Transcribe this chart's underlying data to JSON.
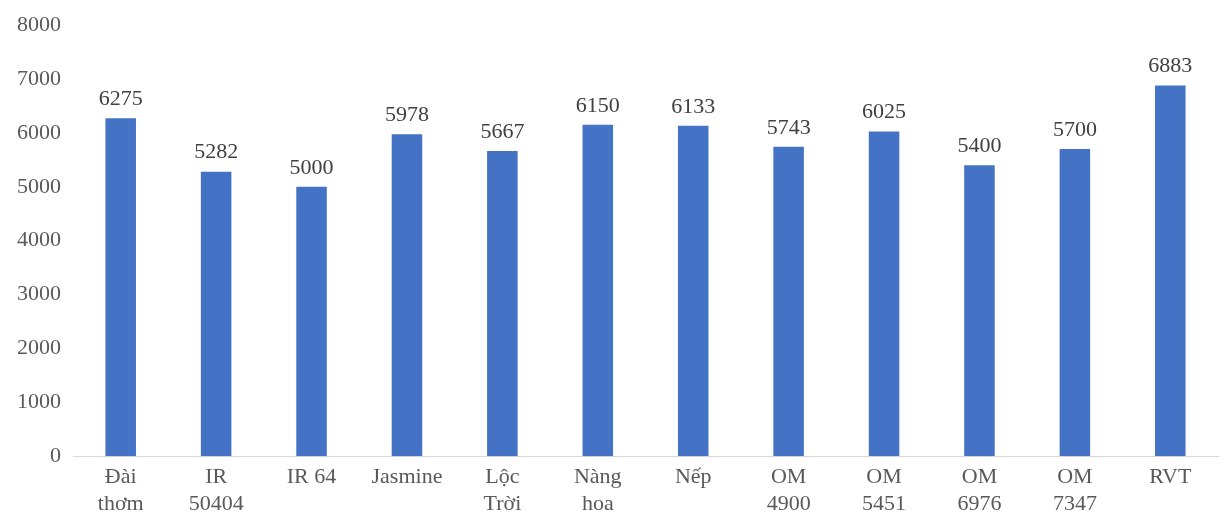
{
  "chart_data": {
    "type": "bar",
    "categories": [
      "Đài\nthơm",
      "IR\n50404",
      "IR 64",
      "Jasmine",
      "Lộc\nTrời",
      "Nàng\nhoa",
      "Nếp",
      "OM\n4900",
      "OM\n5451",
      "OM\n6976",
      "OM\n7347",
      "RVT"
    ],
    "values": [
      6275,
      5282,
      5000,
      5978,
      5667,
      6150,
      6133,
      5743,
      6025,
      5400,
      5700,
      6883
    ],
    "color": "#4472c4",
    "ylim": [
      0,
      8000
    ],
    "yticks": [
      0,
      1000,
      2000,
      3000,
      4000,
      5000,
      6000,
      7000,
      8000
    ],
    "data_labels": true,
    "legend": false,
    "grid": false
  }
}
